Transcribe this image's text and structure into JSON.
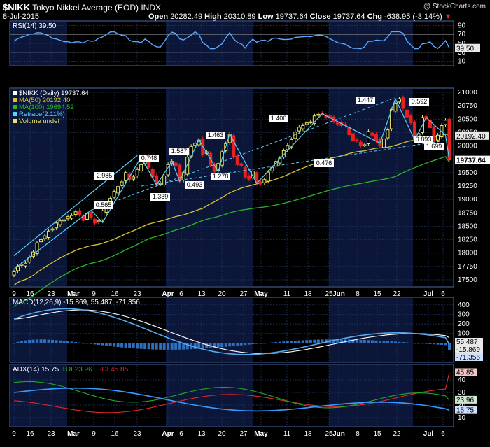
{
  "header": {
    "symbol": "$NIKK",
    "name": "Tokyo Nikkei Average (EOD)",
    "exchange": "INDX",
    "date": "8-Jul-2015",
    "copyright": "@ StockCharts.com",
    "open_label": "Open",
    "open": "20282.49",
    "high_label": "High",
    "high": "20310.89",
    "low_label": "Low",
    "low": "19737.64",
    "close_label": "Close",
    "close": "19737.64",
    "chg_label": "Chg",
    "chg": "-638.95 (-3.14%)",
    "chg_arrow": "▼"
  },
  "colors": {
    "background": "#000000",
    "panel_grid": "#1f3b6e",
    "shade": "#0b1638",
    "price_trend": "#5ad1ff",
    "ma50": "#d7c332",
    "ma100": "#2bb52b",
    "up": "#e6e66a",
    "down": "#e82020",
    "macd": "#55aaee",
    "signal": "#ffffff",
    "hist": "#2e6fbf",
    "adx": "#3a9bff",
    "pdi": "#22aa22",
    "mdi": "#e02828"
  },
  "rsi": {
    "legend": "RSI(14) 39.50",
    "last_label": "39.50",
    "axis_labels": [
      "90",
      "70",
      "50",
      "30",
      "10"
    ]
  },
  "price": {
    "legend": [
      "$NIKK (Daily) 19737.64",
      "MA(50) 20192.40",
      "MA(100) 19694.52",
      "Retrace(2.11%)",
      "Volume undef"
    ],
    "axis_labels": [
      "21000",
      "20750",
      "20500",
      "20250",
      "20000",
      "19750",
      "19500",
      "19250",
      "19000",
      "18750",
      "18500",
      "18250",
      "18000",
      "17750",
      "17500"
    ],
    "last_labels": [
      "20192.40",
      "19737.64"
    ],
    "retrace_labels": [
      "0.565",
      "2.985",
      "0.748",
      "1.339",
      "1.587",
      "0.493",
      "1.463",
      "1.278",
      "1.406",
      "0.476",
      "1.447",
      "0.893",
      "0.592",
      "1.699"
    ]
  },
  "macd": {
    "legend": "MACD(12,26,9) -15.869, 55.487, -71.356",
    "axis_labels": [
      "400",
      "300",
      "200",
      "100"
    ],
    "last_labels": [
      "55.487",
      "-15.869",
      "-71.356"
    ]
  },
  "adx": {
    "legend_prefix": "ADX(14) 15.75",
    "pdi_legend": "+DI 23.96",
    "mdi_legend": "-DI 45.85",
    "axis_labels": [
      "40",
      "30",
      "20",
      "10"
    ],
    "last_labels": [
      "45.85",
      "23.96",
      "15.75"
    ]
  },
  "x_axis": {
    "labels": [
      "9",
      "16",
      "23",
      "Mar",
      "9",
      "16",
      "23",
      "Apr",
      "6",
      "13",
      "20",
      "27",
      "May",
      "11",
      "18",
      "25",
      "Jun",
      "8",
      "15",
      "22",
      "Jul",
      "6"
    ]
  },
  "chart_data": {
    "type": "candlestick",
    "title": "$NIKK Tokyo Nikkei Average (EOD) INDX",
    "date_range": [
      "2015-02-06",
      "2015-07-08"
    ],
    "price_ylim": [
      17500,
      21000
    ],
    "close_series": [
      17650,
      17750,
      17790,
      17810,
      17920,
      18020,
      18190,
      18250,
      18320,
      18410,
      18450,
      18560,
      18600,
      18620,
      18680,
      18700,
      18770,
      18720,
      18610,
      18740,
      18660,
      18560,
      18600,
      18790,
      18900,
      19020,
      19150,
      19240,
      19330,
      19500,
      19360,
      19420,
      19560,
      19650,
      19790,
      19600,
      19420,
      19270,
      19300,
      19440,
      19650,
      19710,
      19620,
      19340,
      19500,
      19790,
      19990,
      20050,
      20110,
      19840,
      19890,
      19640,
      19520,
      19670,
      19890,
      20040,
      20220,
      19790,
      19650,
      19630,
      19420,
      19380,
      19530,
      19310,
      19290,
      19370,
      19510,
      19600,
      19710,
      19770,
      19910,
      20010,
      20120,
      20260,
      20350,
      20380,
      20430,
      20450,
      20560,
      20590,
      20600,
      20540,
      20520,
      20460,
      20410,
      20380,
      20380,
      20210,
      20090,
      20100,
      20000,
      20020,
      20270,
      20200,
      20100,
      20000,
      20130,
      20300,
      20680,
      20800,
      20880,
      20700,
      20540,
      20430,
      20110,
      20230,
      20530,
      20510,
      20340,
      20090,
      20200,
      20380,
      20480,
      19737.64
    ],
    "ma50_last": 20192.4,
    "ma100_last": 19694.52,
    "rsi_last": 39.5,
    "macd": {
      "macd": -15.869,
      "signal": 55.487,
      "hist": -71.356
    },
    "adx": {
      "adx": 15.75,
      "plus_di": 23.96,
      "minus_di": 45.85
    }
  }
}
